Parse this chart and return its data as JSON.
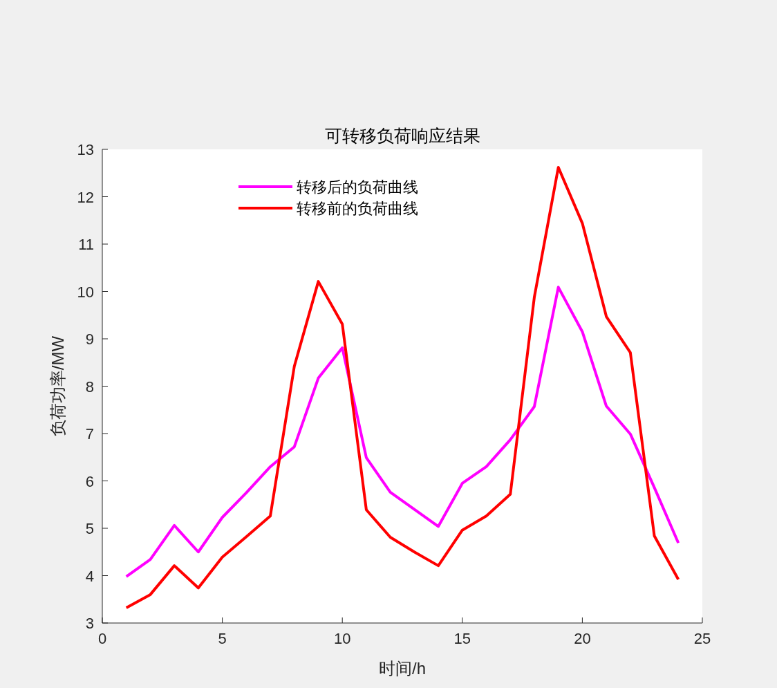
{
  "chart_data": {
    "type": "line",
    "title": "可转移负荷响应结果",
    "xlabel": "时间/h",
    "ylabel": "负荷功率/MW",
    "x": [
      1,
      2,
      3,
      4,
      5,
      6,
      7,
      8,
      9,
      10,
      11,
      12,
      13,
      14,
      15,
      16,
      17,
      18,
      19,
      20,
      21,
      22,
      23,
      24
    ],
    "series": [
      {
        "name": "转移后的负荷曲线",
        "color": "#ff00ff",
        "values": [
          3.98,
          4.34,
          5.06,
          4.5,
          5.23,
          5.75,
          6.3,
          6.72,
          8.17,
          8.81,
          6.49,
          5.76,
          5.4,
          5.04,
          5.95,
          6.3,
          6.87,
          7.57,
          10.09,
          9.15,
          7.58,
          6.99,
          5.86,
          4.69
        ]
      },
      {
        "name": "转移前的负荷曲线",
        "color": "#ff0000",
        "values": [
          3.32,
          3.6,
          4.21,
          3.74,
          4.39,
          4.82,
          5.26,
          8.42,
          10.21,
          9.31,
          5.39,
          4.81,
          4.5,
          4.21,
          4.96,
          5.26,
          5.72,
          9.88,
          12.62,
          11.44,
          9.47,
          8.71,
          4.84,
          3.92
        ]
      }
    ],
    "xlim": [
      0,
      25
    ],
    "xticks": [
      0,
      5,
      10,
      15,
      20,
      25
    ],
    "ylim": [
      3,
      13
    ],
    "yticks": [
      3,
      4,
      5,
      6,
      7,
      8,
      9,
      10,
      11,
      12,
      13
    ],
    "grid": false,
    "legend": "top left",
    "marker": "none",
    "line_style": "solid"
  }
}
